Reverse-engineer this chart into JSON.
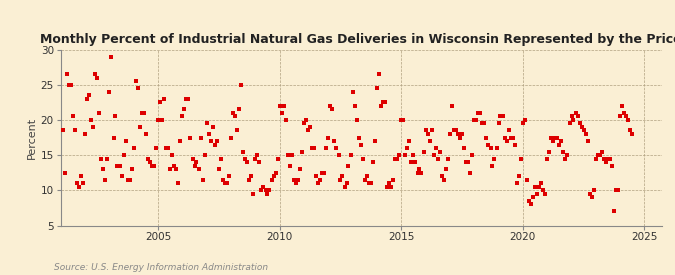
{
  "title": "Monthly Percent of Industrial Natural Gas Deliveries in Wisconsin Represented by the Price",
  "ylabel": "Percent",
  "source": "Source: U.S. Energy Information Administration",
  "background_color": "#faefd4",
  "marker_color": "#dd0000",
  "xlim": [
    2001.0,
    2025.7
  ],
  "ylim": [
    5,
    30
  ],
  "yticks": [
    5,
    10,
    15,
    20,
    25,
    30
  ],
  "xticks": [
    2005,
    2010,
    2015,
    2020,
    2025
  ],
  "data": [
    [
      2001.08,
      18.5
    ],
    [
      2001.17,
      12.5
    ],
    [
      2001.25,
      26.5
    ],
    [
      2001.33,
      25.0
    ],
    [
      2001.42,
      25.0
    ],
    [
      2001.5,
      20.5
    ],
    [
      2001.58,
      18.5
    ],
    [
      2001.67,
      11.0
    ],
    [
      2001.75,
      10.5
    ],
    [
      2001.83,
      12.0
    ],
    [
      2001.92,
      11.0
    ],
    [
      2002.0,
      18.0
    ],
    [
      2002.08,
      23.0
    ],
    [
      2002.17,
      23.5
    ],
    [
      2002.25,
      20.0
    ],
    [
      2002.33,
      19.0
    ],
    [
      2002.42,
      26.5
    ],
    [
      2002.5,
      26.0
    ],
    [
      2002.58,
      21.0
    ],
    [
      2002.67,
      14.5
    ],
    [
      2002.75,
      13.0
    ],
    [
      2002.83,
      11.5
    ],
    [
      2002.92,
      14.5
    ],
    [
      2003.0,
      24.0
    ],
    [
      2003.08,
      29.0
    ],
    [
      2003.17,
      17.5
    ],
    [
      2003.25,
      20.5
    ],
    [
      2003.33,
      13.5
    ],
    [
      2003.42,
      13.5
    ],
    [
      2003.5,
      12.0
    ],
    [
      2003.58,
      15.0
    ],
    [
      2003.67,
      17.0
    ],
    [
      2003.75,
      11.5
    ],
    [
      2003.83,
      11.5
    ],
    [
      2003.92,
      13.0
    ],
    [
      2004.0,
      16.0
    ],
    [
      2004.08,
      25.5
    ],
    [
      2004.17,
      24.5
    ],
    [
      2004.25,
      19.0
    ],
    [
      2004.33,
      21.0
    ],
    [
      2004.42,
      21.0
    ],
    [
      2004.5,
      18.0
    ],
    [
      2004.58,
      14.5
    ],
    [
      2004.67,
      14.0
    ],
    [
      2004.75,
      13.5
    ],
    [
      2004.83,
      13.5
    ],
    [
      2004.92,
      16.0
    ],
    [
      2005.0,
      20.0
    ],
    [
      2005.08,
      22.5
    ],
    [
      2005.17,
      20.0
    ],
    [
      2005.25,
      23.0
    ],
    [
      2005.33,
      16.0
    ],
    [
      2005.42,
      16.0
    ],
    [
      2005.5,
      13.0
    ],
    [
      2005.58,
      15.0
    ],
    [
      2005.67,
      13.5
    ],
    [
      2005.75,
      13.0
    ],
    [
      2005.83,
      11.0
    ],
    [
      2005.92,
      17.0
    ],
    [
      2006.0,
      20.5
    ],
    [
      2006.08,
      21.5
    ],
    [
      2006.17,
      23.0
    ],
    [
      2006.25,
      23.0
    ],
    [
      2006.33,
      17.5
    ],
    [
      2006.42,
      14.5
    ],
    [
      2006.5,
      13.5
    ],
    [
      2006.58,
      14.0
    ],
    [
      2006.67,
      13.0
    ],
    [
      2006.75,
      17.5
    ],
    [
      2006.83,
      11.5
    ],
    [
      2006.92,
      15.0
    ],
    [
      2007.0,
      19.5
    ],
    [
      2007.08,
      18.0
    ],
    [
      2007.17,
      17.0
    ],
    [
      2007.25,
      19.0
    ],
    [
      2007.33,
      16.5
    ],
    [
      2007.42,
      17.0
    ],
    [
      2007.5,
      13.0
    ],
    [
      2007.58,
      14.5
    ],
    [
      2007.67,
      11.5
    ],
    [
      2007.75,
      11.0
    ],
    [
      2007.83,
      11.0
    ],
    [
      2007.92,
      12.0
    ],
    [
      2008.0,
      17.5
    ],
    [
      2008.08,
      21.0
    ],
    [
      2008.17,
      20.5
    ],
    [
      2008.25,
      18.5
    ],
    [
      2008.33,
      21.5
    ],
    [
      2008.42,
      25.0
    ],
    [
      2008.5,
      15.5
    ],
    [
      2008.58,
      14.5
    ],
    [
      2008.67,
      14.0
    ],
    [
      2008.75,
      11.5
    ],
    [
      2008.83,
      12.0
    ],
    [
      2008.92,
      9.5
    ],
    [
      2009.0,
      14.5
    ],
    [
      2009.08,
      15.0
    ],
    [
      2009.17,
      14.0
    ],
    [
      2009.25,
      10.0
    ],
    [
      2009.33,
      10.5
    ],
    [
      2009.42,
      10.0
    ],
    [
      2009.5,
      9.5
    ],
    [
      2009.58,
      10.0
    ],
    [
      2009.67,
      11.5
    ],
    [
      2009.75,
      12.0
    ],
    [
      2009.83,
      12.5
    ],
    [
      2009.92,
      14.5
    ],
    [
      2010.0,
      22.0
    ],
    [
      2010.08,
      21.0
    ],
    [
      2010.17,
      22.0
    ],
    [
      2010.25,
      20.0
    ],
    [
      2010.33,
      15.0
    ],
    [
      2010.42,
      13.5
    ],
    [
      2010.5,
      15.0
    ],
    [
      2010.58,
      11.5
    ],
    [
      2010.67,
      11.0
    ],
    [
      2010.75,
      11.5
    ],
    [
      2010.83,
      13.0
    ],
    [
      2010.92,
      15.5
    ],
    [
      2011.0,
      19.5
    ],
    [
      2011.08,
      20.0
    ],
    [
      2011.17,
      18.5
    ],
    [
      2011.25,
      19.0
    ],
    [
      2011.33,
      16.0
    ],
    [
      2011.42,
      16.0
    ],
    [
      2011.5,
      12.0
    ],
    [
      2011.58,
      11.0
    ],
    [
      2011.67,
      11.5
    ],
    [
      2011.75,
      12.5
    ],
    [
      2011.83,
      12.5
    ],
    [
      2011.92,
      16.0
    ],
    [
      2012.0,
      17.5
    ],
    [
      2012.08,
      22.0
    ],
    [
      2012.17,
      21.5
    ],
    [
      2012.25,
      17.0
    ],
    [
      2012.33,
      16.0
    ],
    [
      2012.42,
      15.0
    ],
    [
      2012.5,
      11.5
    ],
    [
      2012.58,
      12.0
    ],
    [
      2012.67,
      10.5
    ],
    [
      2012.75,
      11.0
    ],
    [
      2012.83,
      13.5
    ],
    [
      2012.92,
      15.0
    ],
    [
      2013.0,
      24.0
    ],
    [
      2013.08,
      22.0
    ],
    [
      2013.17,
      20.0
    ],
    [
      2013.25,
      17.5
    ],
    [
      2013.33,
      16.5
    ],
    [
      2013.42,
      14.5
    ],
    [
      2013.5,
      11.5
    ],
    [
      2013.58,
      12.0
    ],
    [
      2013.67,
      11.0
    ],
    [
      2013.75,
      11.0
    ],
    [
      2013.83,
      14.0
    ],
    [
      2013.92,
      17.0
    ],
    [
      2014.0,
      24.5
    ],
    [
      2014.08,
      26.5
    ],
    [
      2014.17,
      22.0
    ],
    [
      2014.25,
      22.5
    ],
    [
      2014.33,
      22.5
    ],
    [
      2014.42,
      10.5
    ],
    [
      2014.5,
      11.0
    ],
    [
      2014.58,
      10.5
    ],
    [
      2014.67,
      11.5
    ],
    [
      2014.75,
      14.5
    ],
    [
      2014.83,
      14.5
    ],
    [
      2014.92,
      15.0
    ],
    [
      2015.0,
      20.0
    ],
    [
      2015.08,
      20.0
    ],
    [
      2015.17,
      15.0
    ],
    [
      2015.25,
      16.0
    ],
    [
      2015.33,
      17.0
    ],
    [
      2015.42,
      14.0
    ],
    [
      2015.5,
      15.0
    ],
    [
      2015.58,
      14.0
    ],
    [
      2015.67,
      12.5
    ],
    [
      2015.75,
      13.0
    ],
    [
      2015.83,
      12.5
    ],
    [
      2015.92,
      15.5
    ],
    [
      2016.0,
      18.5
    ],
    [
      2016.08,
      18.0
    ],
    [
      2016.17,
      17.0
    ],
    [
      2016.25,
      18.5
    ],
    [
      2016.33,
      15.0
    ],
    [
      2016.42,
      16.0
    ],
    [
      2016.5,
      14.5
    ],
    [
      2016.58,
      15.5
    ],
    [
      2016.67,
      12.0
    ],
    [
      2016.75,
      11.5
    ],
    [
      2016.83,
      13.0
    ],
    [
      2016.92,
      14.5
    ],
    [
      2017.0,
      18.0
    ],
    [
      2017.08,
      22.0
    ],
    [
      2017.17,
      18.5
    ],
    [
      2017.25,
      18.5
    ],
    [
      2017.33,
      18.0
    ],
    [
      2017.42,
      17.5
    ],
    [
      2017.5,
      18.0
    ],
    [
      2017.58,
      16.0
    ],
    [
      2017.67,
      14.0
    ],
    [
      2017.75,
      14.0
    ],
    [
      2017.83,
      12.5
    ],
    [
      2017.92,
      15.0
    ],
    [
      2018.0,
      20.0
    ],
    [
      2018.08,
      20.0
    ],
    [
      2018.17,
      21.0
    ],
    [
      2018.25,
      21.0
    ],
    [
      2018.33,
      19.5
    ],
    [
      2018.42,
      19.5
    ],
    [
      2018.5,
      17.5
    ],
    [
      2018.58,
      16.5
    ],
    [
      2018.67,
      16.0
    ],
    [
      2018.75,
      13.5
    ],
    [
      2018.83,
      14.5
    ],
    [
      2018.92,
      16.0
    ],
    [
      2019.0,
      19.5
    ],
    [
      2019.08,
      20.5
    ],
    [
      2019.17,
      20.5
    ],
    [
      2019.25,
      17.5
    ],
    [
      2019.33,
      17.0
    ],
    [
      2019.42,
      18.5
    ],
    [
      2019.5,
      17.5
    ],
    [
      2019.58,
      17.5
    ],
    [
      2019.67,
      16.5
    ],
    [
      2019.75,
      11.0
    ],
    [
      2019.83,
      12.0
    ],
    [
      2019.92,
      14.5
    ],
    [
      2020.0,
      19.5
    ],
    [
      2020.08,
      20.0
    ],
    [
      2020.17,
      11.5
    ],
    [
      2020.25,
      8.5
    ],
    [
      2020.33,
      8.0
    ],
    [
      2020.42,
      9.0
    ],
    [
      2020.5,
      10.5
    ],
    [
      2020.58,
      9.5
    ],
    [
      2020.67,
      10.5
    ],
    [
      2020.75,
      11.0
    ],
    [
      2020.83,
      10.0
    ],
    [
      2020.92,
      9.5
    ],
    [
      2021.0,
      14.5
    ],
    [
      2021.08,
      15.5
    ],
    [
      2021.17,
      17.5
    ],
    [
      2021.25,
      17.0
    ],
    [
      2021.33,
      17.5
    ],
    [
      2021.42,
      17.5
    ],
    [
      2021.5,
      16.5
    ],
    [
      2021.58,
      17.0
    ],
    [
      2021.67,
      15.5
    ],
    [
      2021.75,
      14.5
    ],
    [
      2021.83,
      15.0
    ],
    [
      2021.92,
      19.5
    ],
    [
      2022.0,
      20.5
    ],
    [
      2022.08,
      20.0
    ],
    [
      2022.17,
      21.0
    ],
    [
      2022.25,
      20.5
    ],
    [
      2022.33,
      19.5
    ],
    [
      2022.42,
      19.0
    ],
    [
      2022.5,
      18.5
    ],
    [
      2022.58,
      18.0
    ],
    [
      2022.67,
      17.0
    ],
    [
      2022.75,
      9.5
    ],
    [
      2022.83,
      9.0
    ],
    [
      2022.92,
      10.0
    ],
    [
      2023.0,
      14.5
    ],
    [
      2023.08,
      15.0
    ],
    [
      2023.17,
      15.0
    ],
    [
      2023.25,
      15.5
    ],
    [
      2023.33,
      14.5
    ],
    [
      2023.42,
      14.0
    ],
    [
      2023.5,
      14.5
    ],
    [
      2023.58,
      14.5
    ],
    [
      2023.67,
      13.5
    ],
    [
      2023.75,
      7.0
    ],
    [
      2023.83,
      10.0
    ],
    [
      2023.92,
      10.0
    ],
    [
      2024.0,
      20.5
    ],
    [
      2024.08,
      22.0
    ],
    [
      2024.17,
      21.0
    ],
    [
      2024.25,
      20.5
    ],
    [
      2024.33,
      20.0
    ],
    [
      2024.42,
      18.5
    ],
    [
      2024.5,
      18.0
    ]
  ]
}
